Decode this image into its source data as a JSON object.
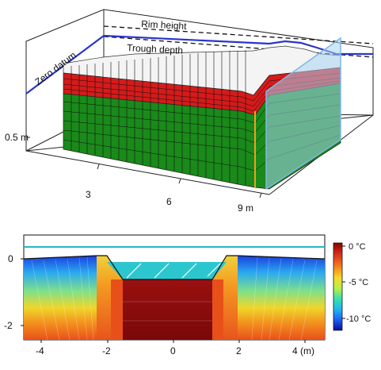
{
  "top_panel": {
    "labels": {
      "rim_height": "Rim height",
      "trough_depth": "Trough depth",
      "zero_datum": "Zero datum",
      "scale_bar": "0.5 m"
    },
    "x_ticks": [
      "3",
      "6",
      "9 m"
    ],
    "colors": {
      "datum_line": "#2a36c9",
      "red_layer": "#d61a1a",
      "green_layer": "#1a8a1a",
      "white_layer": "#f4f4f4",
      "highlight_slab": "#a9d4f2",
      "orange_edge": "#f0a020"
    }
  },
  "bottom_panel": {
    "y_ticks": [
      "0",
      "-2"
    ],
    "x_ticks": [
      "-4",
      "-2",
      "0",
      "2",
      "4 (m)"
    ],
    "colorbar": {
      "labels": [
        "0 °C",
        "-5 °C",
        "-10 °C"
      ],
      "max_c": 0,
      "min_c": -12,
      "colors": [
        "#8b0000",
        "#d42a1a",
        "#f37a1c",
        "#f8d82a",
        "#b6f04a",
        "#39e0b0",
        "#1fb6ef",
        "#1a5ef5",
        "#0a0aa0"
      ]
    },
    "colors": {
      "surface_line": "#27b8c8",
      "trough_water": "#2cc6cf",
      "core": "#8e0f0f"
    }
  }
}
